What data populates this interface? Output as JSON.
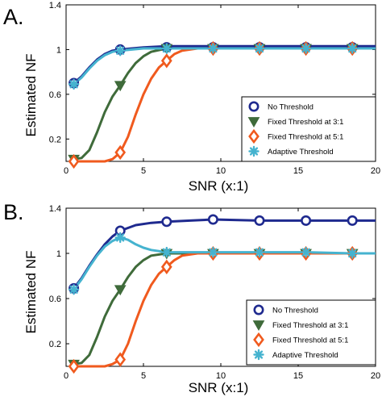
{
  "chart_data": [
    {
      "type": "line",
      "panel_label": "A.",
      "xlabel": "SNR (x:1)",
      "ylabel": "Estimated NF",
      "xlim": [
        0,
        20
      ],
      "ylim": [
        0,
        1.4
      ],
      "xticks": [
        0,
        5,
        10,
        15,
        20
      ],
      "yticks": [
        0.2,
        0.6,
        1,
        1.4
      ],
      "grid": false,
      "legend_position": "bottom-right",
      "series": [
        {
          "name": "No Threshold",
          "marker": "circle",
          "color": "#1f2a8f",
          "points": [
            [
              0.5,
              0.7
            ],
            [
              3.5,
              1.0
            ],
            [
              6.5,
              1.02
            ],
            [
              9.5,
              1.02
            ],
            [
              12.5,
              1.02
            ],
            [
              15.5,
              1.02
            ],
            [
              18.5,
              1.02
            ]
          ],
          "curve": [
            [
              0.5,
              0.7
            ],
            [
              1,
              0.76
            ],
            [
              1.5,
              0.84
            ],
            [
              2,
              0.91
            ],
            [
              2.5,
              0.96
            ],
            [
              3,
              0.99
            ],
            [
              3.5,
              1.0
            ],
            [
              5,
              1.02
            ],
            [
              6.5,
              1.03
            ],
            [
              9.5,
              1.03
            ],
            [
              12.5,
              1.03
            ],
            [
              15.5,
              1.03
            ],
            [
              18.5,
              1.03
            ],
            [
              20,
              1.03
            ]
          ]
        },
        {
          "name": "Fixed Threshold at 3:1",
          "marker": "triangle-down",
          "color": "#3f6b3a",
          "points": [
            [
              0.5,
              0.02
            ],
            [
              3.5,
              0.68
            ],
            [
              6.5,
              1.01
            ],
            [
              9.5,
              1.01
            ],
            [
              12.5,
              1.01
            ],
            [
              15.5,
              1.01
            ],
            [
              18.5,
              1.01
            ]
          ],
          "curve": [
            [
              0.5,
              0.02
            ],
            [
              1,
              0.03
            ],
            [
              1.5,
              0.1
            ],
            [
              2,
              0.26
            ],
            [
              2.5,
              0.44
            ],
            [
              3,
              0.58
            ],
            [
              3.5,
              0.68
            ],
            [
              4,
              0.79
            ],
            [
              4.5,
              0.88
            ],
            [
              5,
              0.94
            ],
            [
              5.5,
              0.98
            ],
            [
              6.5,
              1.01
            ],
            [
              9.5,
              1.01
            ],
            [
              12.5,
              1.01
            ],
            [
              15.5,
              1.01
            ],
            [
              18.5,
              1.01
            ],
            [
              20,
              1.01
            ]
          ]
        },
        {
          "name": "Fixed Threshold at 5:1",
          "marker": "diamond",
          "color": "#f05a1e",
          "points": [
            [
              0.5,
              0.0
            ],
            [
              3.5,
              0.08
            ],
            [
              6.5,
              0.9
            ],
            [
              9.5,
              1.01
            ],
            [
              12.5,
              1.01
            ],
            [
              15.5,
              1.01
            ],
            [
              18.5,
              1.01
            ]
          ],
          "curve": [
            [
              0.5,
              0.0
            ],
            [
              2.5,
              0.0
            ],
            [
              3,
              0.02
            ],
            [
              3.5,
              0.08
            ],
            [
              4,
              0.22
            ],
            [
              4.5,
              0.42
            ],
            [
              5,
              0.6
            ],
            [
              5.5,
              0.74
            ],
            [
              6,
              0.84
            ],
            [
              6.5,
              0.9
            ],
            [
              7,
              0.96
            ],
            [
              7.5,
              0.99
            ],
            [
              8.5,
              1.01
            ],
            [
              9.5,
              1.01
            ],
            [
              12.5,
              1.01
            ],
            [
              15.5,
              1.01
            ],
            [
              18.5,
              1.01
            ],
            [
              20,
              1.01
            ]
          ]
        },
        {
          "name": "Adaptive Threshold",
          "marker": "star",
          "color": "#45b3cf",
          "points": [
            [
              0.5,
              0.69
            ],
            [
              3.5,
              0.99
            ],
            [
              6.5,
              1.01
            ],
            [
              9.5,
              1.01
            ],
            [
              12.5,
              1.01
            ],
            [
              15.5,
              1.01
            ],
            [
              18.5,
              1.01
            ]
          ],
          "curve": [
            [
              0.5,
              0.69
            ],
            [
              1,
              0.75
            ],
            [
              1.5,
              0.83
            ],
            [
              2,
              0.9
            ],
            [
              2.5,
              0.95
            ],
            [
              3,
              0.98
            ],
            [
              3.5,
              0.99
            ],
            [
              5,
              1.01
            ],
            [
              6.5,
              1.01
            ],
            [
              9.5,
              1.01
            ],
            [
              12.5,
              1.01
            ],
            [
              15.5,
              1.01
            ],
            [
              18.5,
              1.01
            ],
            [
              20,
              1.01
            ]
          ]
        }
      ]
    },
    {
      "type": "line",
      "panel_label": "B.",
      "xlabel": "SNR (x:1)",
      "ylabel": "Estimated NF",
      "xlim": [
        0,
        20
      ],
      "ylim": [
        0,
        1.4
      ],
      "xticks": [
        0,
        5,
        10,
        15,
        20
      ],
      "yticks": [
        0.2,
        0.6,
        1,
        1.4
      ],
      "grid": false,
      "legend_position": "bottom-right",
      "series": [
        {
          "name": "No Threshold",
          "marker": "circle",
          "color": "#1f2a8f",
          "points": [
            [
              0.5,
              0.69
            ],
            [
              3.5,
              1.2
            ],
            [
              6.5,
              1.28
            ],
            [
              9.5,
              1.3
            ],
            [
              12.5,
              1.29
            ],
            [
              15.5,
              1.29
            ],
            [
              18.5,
              1.29
            ]
          ],
          "curve": [
            [
              0.5,
              0.69
            ],
            [
              1,
              0.78
            ],
            [
              1.5,
              0.89
            ],
            [
              2,
              0.99
            ],
            [
              2.5,
              1.08
            ],
            [
              3,
              1.15
            ],
            [
              3.5,
              1.2
            ],
            [
              4.5,
              1.25
            ],
            [
              5.5,
              1.27
            ],
            [
              6.5,
              1.28
            ],
            [
              8,
              1.29
            ],
            [
              9.5,
              1.3
            ],
            [
              12.5,
              1.29
            ],
            [
              15.5,
              1.29
            ],
            [
              18.5,
              1.29
            ],
            [
              20,
              1.29
            ]
          ]
        },
        {
          "name": "Fixed Threshold at 3:1",
          "marker": "triangle-down",
          "color": "#3f6b3a",
          "points": [
            [
              0.5,
              0.02
            ],
            [
              3.5,
              0.68
            ],
            [
              6.5,
              1.0
            ],
            [
              9.5,
              1.0
            ],
            [
              12.5,
              1.0
            ],
            [
              15.5,
              1.0
            ],
            [
              18.5,
              1.0
            ]
          ],
          "curve": [
            [
              0.5,
              0.02
            ],
            [
              1,
              0.03
            ],
            [
              1.5,
              0.1
            ],
            [
              2,
              0.26
            ],
            [
              2.5,
              0.44
            ],
            [
              3,
              0.58
            ],
            [
              3.5,
              0.68
            ],
            [
              4,
              0.79
            ],
            [
              4.5,
              0.88
            ],
            [
              5,
              0.94
            ],
            [
              5.5,
              0.98
            ],
            [
              6.5,
              1.0
            ],
            [
              9.5,
              1.0
            ],
            [
              12.5,
              1.0
            ],
            [
              15.5,
              1.0
            ],
            [
              18.5,
              1.0
            ],
            [
              20,
              1.0
            ]
          ]
        },
        {
          "name": "Fixed Threshold at 5:1",
          "marker": "diamond",
          "color": "#f05a1e",
          "points": [
            [
              0.5,
              0.0
            ],
            [
              3.5,
              0.06
            ],
            [
              6.5,
              0.88
            ],
            [
              9.5,
              1.0
            ],
            [
              12.5,
              1.0
            ],
            [
              15.5,
              1.0
            ],
            [
              18.5,
              1.0
            ]
          ],
          "curve": [
            [
              0.5,
              0.0
            ],
            [
              2.5,
              0.0
            ],
            [
              3,
              0.02
            ],
            [
              3.5,
              0.06
            ],
            [
              4,
              0.2
            ],
            [
              4.5,
              0.4
            ],
            [
              5,
              0.58
            ],
            [
              5.5,
              0.72
            ],
            [
              6,
              0.82
            ],
            [
              6.5,
              0.88
            ],
            [
              7,
              0.94
            ],
            [
              7.5,
              0.98
            ],
            [
              8.5,
              1.0
            ],
            [
              9.5,
              1.0
            ],
            [
              12.5,
              1.0
            ],
            [
              15.5,
              1.0
            ],
            [
              18.5,
              1.0
            ],
            [
              20,
              1.0
            ]
          ]
        },
        {
          "name": "Adaptive Threshold",
          "marker": "star",
          "color": "#45b3cf",
          "points": [
            [
              0.5,
              0.68
            ],
            [
              3.5,
              1.14
            ],
            [
              6.5,
              1.01
            ],
            [
              9.5,
              1.01
            ],
            [
              12.5,
              1.01
            ],
            [
              15.5,
              1.01
            ],
            [
              18.5,
              1.0
            ]
          ],
          "curve": [
            [
              0.5,
              0.68
            ],
            [
              1,
              0.77
            ],
            [
              1.5,
              0.88
            ],
            [
              2,
              0.98
            ],
            [
              2.5,
              1.06
            ],
            [
              3,
              1.11
            ],
            [
              3.5,
              1.14
            ],
            [
              4,
              1.12
            ],
            [
              4.5,
              1.08
            ],
            [
              5,
              1.05
            ],
            [
              5.5,
              1.03
            ],
            [
              6.5,
              1.01
            ],
            [
              9.5,
              1.01
            ],
            [
              12.5,
              1.01
            ],
            [
              15.5,
              1.01
            ],
            [
              18.5,
              1.0
            ],
            [
              20,
              1.0
            ]
          ]
        }
      ]
    }
  ]
}
